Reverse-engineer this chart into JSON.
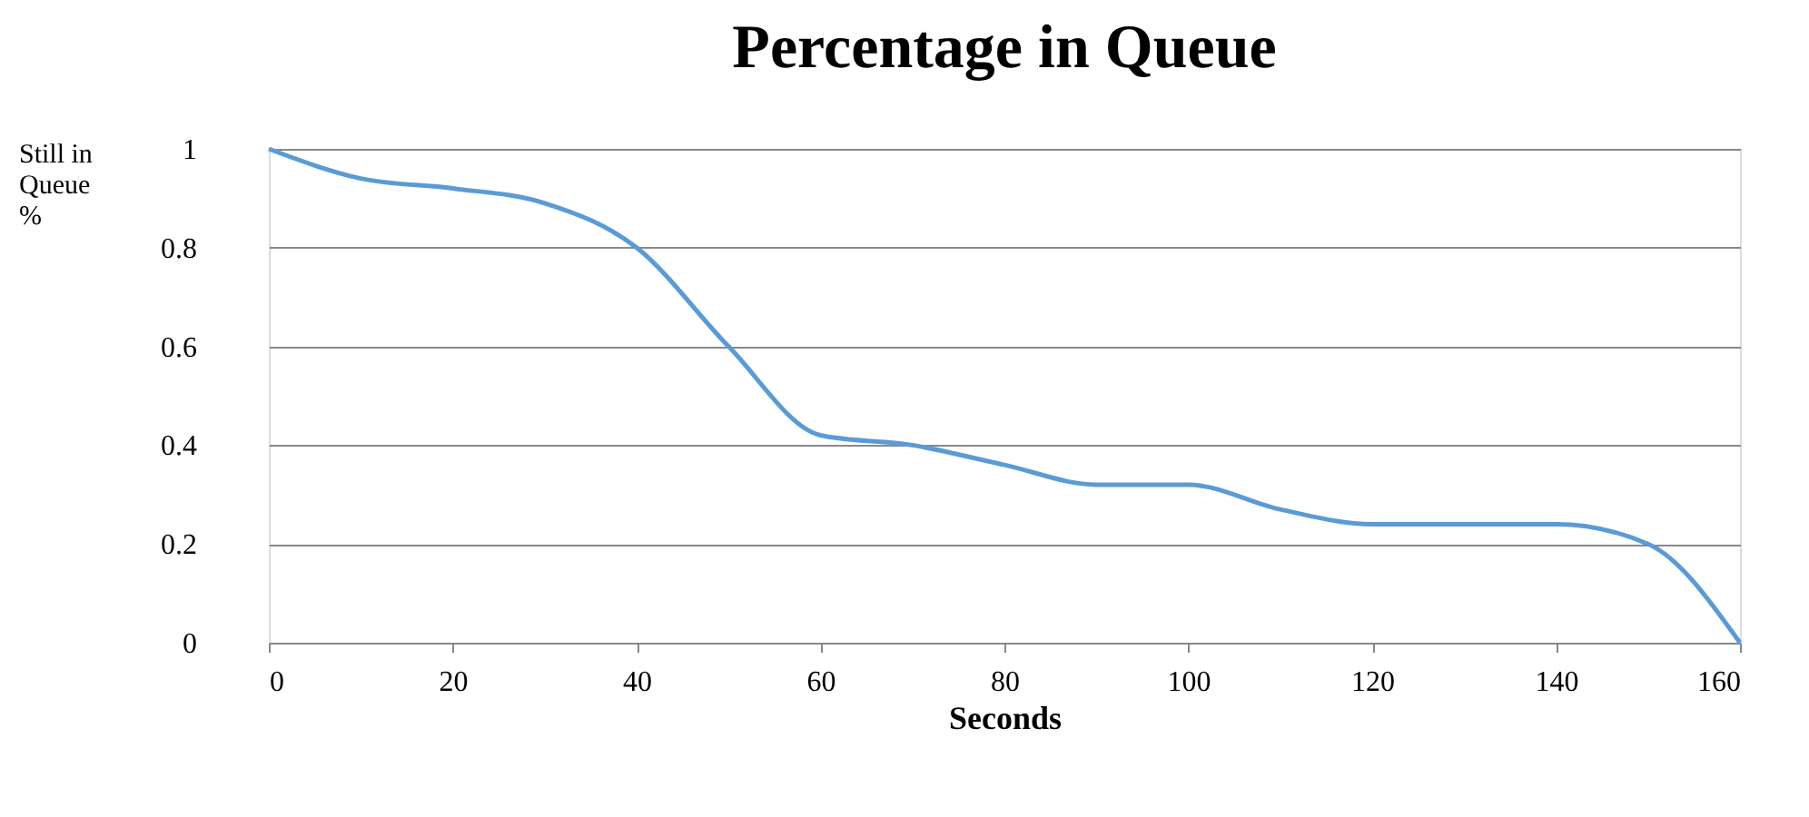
{
  "chart_data": {
    "type": "line",
    "title": "Percentage in Queue",
    "xlabel": "Seconds",
    "ylabel": "Still in\nQueue\n%",
    "x": [
      0,
      10,
      20,
      30,
      40,
      50,
      60,
      70,
      80,
      90,
      100,
      110,
      120,
      130,
      140,
      150,
      160
    ],
    "series": [
      {
        "color": "#5b9bd5",
        "values": [
          1.0,
          0.94,
          0.92,
          0.89,
          0.8,
          0.6,
          0.42,
          0.4,
          0.36,
          0.32,
          0.32,
          0.27,
          0.24,
          0.24,
          0.24,
          0.2,
          0.0
        ]
      }
    ],
    "xlim": [
      0,
      160
    ],
    "xticks": [
      0,
      20,
      40,
      60,
      80,
      100,
      120,
      140,
      160
    ],
    "ylim": [
      0,
      1
    ],
    "yticks": [
      0,
      0.2,
      0.4,
      0.6,
      0.8,
      1
    ],
    "grid": "y",
    "legend": false,
    "marker": "none",
    "line_style": "solid"
  }
}
